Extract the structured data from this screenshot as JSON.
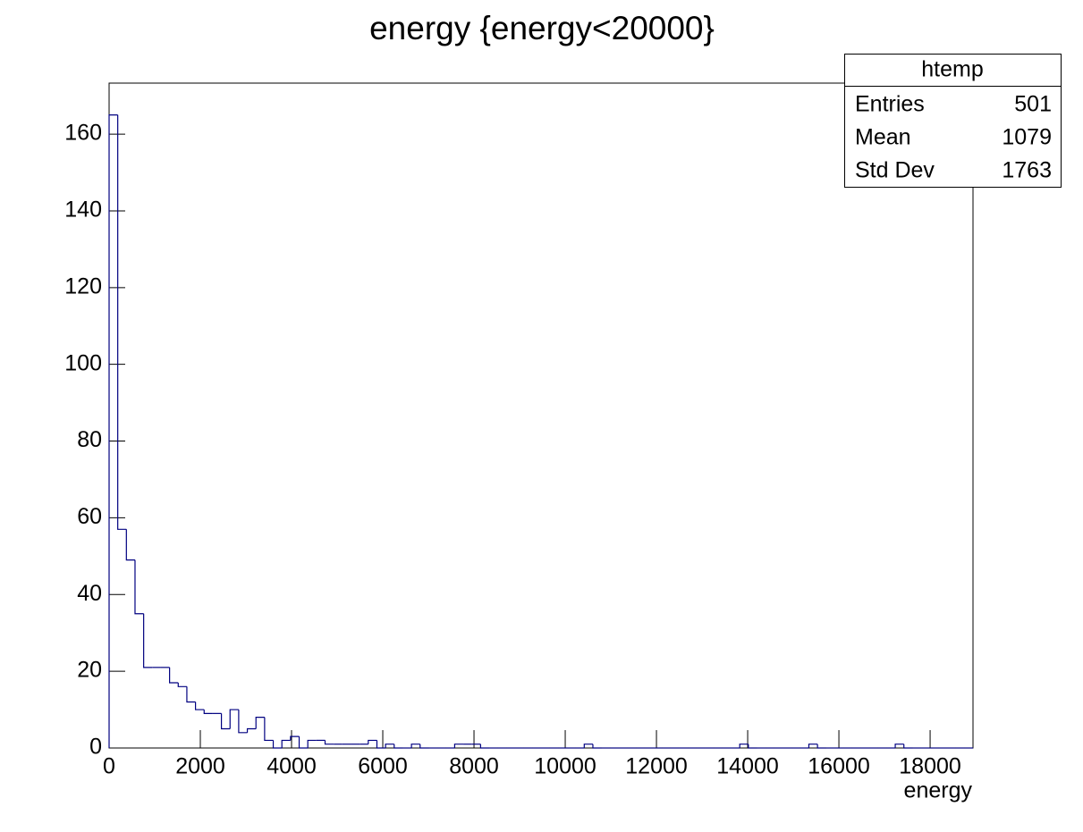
{
  "chart_data": {
    "type": "histogram",
    "title": "energy {energy<20000}",
    "x_label": "energy",
    "bins": [
      0,
      189.4,
      378.8,
      568.2,
      757.6,
      947,
      1136.4,
      1325.8,
      1515.2,
      1704.6,
      1894,
      2083.4,
      2272.8,
      2462.2,
      2651.6,
      2841,
      3030.4,
      3219.8,
      3409.2,
      3598.6,
      3788,
      3977.4,
      4166.8,
      4356.2,
      4545.6,
      4735,
      4924.4,
      5113.8,
      5303.2,
      5492.6,
      5682,
      5871.4,
      6060.8,
      6250.2,
      6439.6,
      6629,
      6818.4,
      7007.8,
      7197.2,
      7386.6,
      7576,
      7765.4,
      7954.8,
      8144.2,
      8333.6,
      8523,
      8712.4,
      8901.8,
      9091.2,
      9280.6,
      9470,
      9659.4,
      9848.8,
      10038.2,
      10227.6,
      10417,
      10606.4,
      10795.8,
      10985.2,
      11174.6,
      11364,
      11553.4,
      11742.8,
      11932.2,
      12121.6,
      12311,
      12500.4,
      12689.8,
      12879.2,
      13068.6,
      13258,
      13447.4,
      13636.8,
      13826.2,
      14015.6,
      14205,
      14394.4,
      14583.8,
      14773.2,
      14962.6,
      15152,
      15341.4,
      15530.8,
      15720.2,
      15909.6,
      16099,
      16288.4,
      16477.8,
      16667.2,
      16856.6,
      17046,
      17235.4,
      17424.8,
      17614.2,
      17803.6,
      17993,
      18182.4,
      18371.8,
      18561.2,
      18750.6,
      18940
    ],
    "values": [
      165,
      57,
      49,
      35,
      21,
      21,
      21,
      17,
      16,
      12,
      10,
      9,
      9,
      5,
      10,
      4,
      5,
      8,
      2,
      0,
      2,
      3,
      0,
      2,
      2,
      1,
      1,
      1,
      1,
      1,
      2,
      0,
      1,
      0,
      0,
      1,
      0,
      0,
      0,
      0,
      1,
      1,
      1,
      0,
      0,
      0,
      0,
      0,
      0,
      0,
      0,
      0,
      0,
      0,
      0,
      1,
      0,
      0,
      0,
      0,
      0,
      0,
      0,
      0,
      0,
      0,
      0,
      0,
      0,
      0,
      0,
      0,
      0,
      1,
      0,
      0,
      0,
      0,
      0,
      0,
      0,
      1,
      0,
      0,
      0,
      0,
      0,
      0,
      0,
      0,
      0,
      1,
      0,
      0,
      0,
      0,
      0,
      0,
      0,
      0
    ],
    "color": "#000080",
    "xlim": [
      0,
      18940
    ],
    "ylim": [
      0,
      173.3
    ],
    "xticks": [
      0,
      2000,
      4000,
      6000,
      8000,
      10000,
      12000,
      14000,
      16000,
      18000
    ],
    "yticks": [
      0,
      20,
      40,
      60,
      80,
      100,
      120,
      140,
      160
    ],
    "stats": {
      "title": "htemp",
      "rows": [
        {
          "label": "Entries",
          "value": 501
        },
        {
          "label": "Mean",
          "value": 1079
        },
        {
          "label": "Std Dev",
          "value": 1763
        }
      ]
    }
  }
}
